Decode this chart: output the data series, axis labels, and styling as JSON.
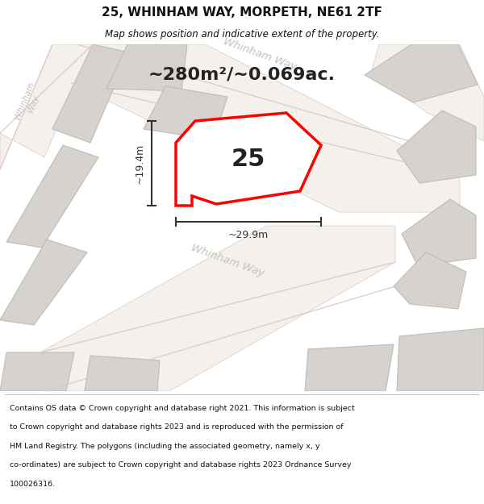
{
  "title_line1": "25, WHINHAM WAY, MORPETH, NE61 2TF",
  "title_line2": "Map shows position and indicative extent of the property.",
  "area_text": "~280m²/~0.069ac.",
  "property_number": "25",
  "dim_height": "~19.4m",
  "dim_width": "~29.9m",
  "footer_lines": [
    "Contains OS data © Crown copyright and database right 2021. This information is subject",
    "to Crown copyright and database rights 2023 and is reproduced with the permission of",
    "HM Land Registry. The polygons (including the associated geometry, namely x, y",
    "co-ordinates) are subject to Crown copyright and database rights 2023 Ordnance Survey",
    "100026316."
  ],
  "map_bg": "#eae8e4",
  "road_fill": "#f4f0ec",
  "road_edge": "#ddc8c8",
  "building_fill": "#d6d3cf",
  "building_edge": "#bfbcb8",
  "plot_color": "#ff0000",
  "plot_fill": "#ffffff",
  "dim_color": "#333333",
  "title_color": "#111111",
  "footer_color": "#111111",
  "label_color": "#c8c0b8",
  "white": "#ffffff"
}
